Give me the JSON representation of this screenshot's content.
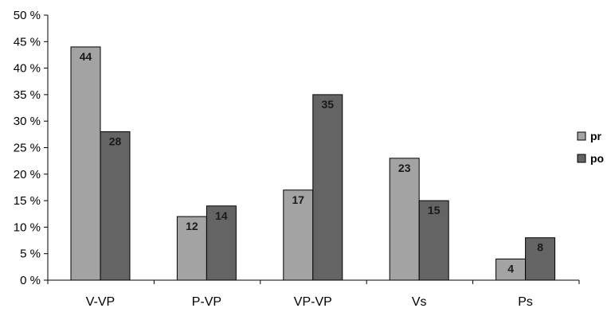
{
  "chart_data": {
    "type": "bar",
    "categories": [
      "V-VP",
      "P-VP",
      "VP-VP",
      "Vs",
      "Ps"
    ],
    "series": [
      {
        "name": "pr",
        "color": "#a3a3a3",
        "values": [
          44,
          12,
          17,
          23,
          4
        ]
      },
      {
        "name": "po",
        "color": "#646464",
        "values": [
          28,
          14,
          35,
          15,
          8
        ]
      }
    ],
    "ylim": [
      0,
      50
    ],
    "yticks": [
      0,
      5,
      10,
      15,
      20,
      25,
      30,
      35,
      40,
      45,
      50
    ],
    "ytick_labels": [
      "0 %",
      "5 %",
      "10 %",
      "15 %",
      "20 %",
      "25 %",
      "30 %",
      "35 %",
      "40 %",
      "45 %",
      "50 %"
    ],
    "title": "",
    "xlabel": "",
    "ylabel": "",
    "grid": false,
    "data_labels": true,
    "legend_position": "right"
  }
}
